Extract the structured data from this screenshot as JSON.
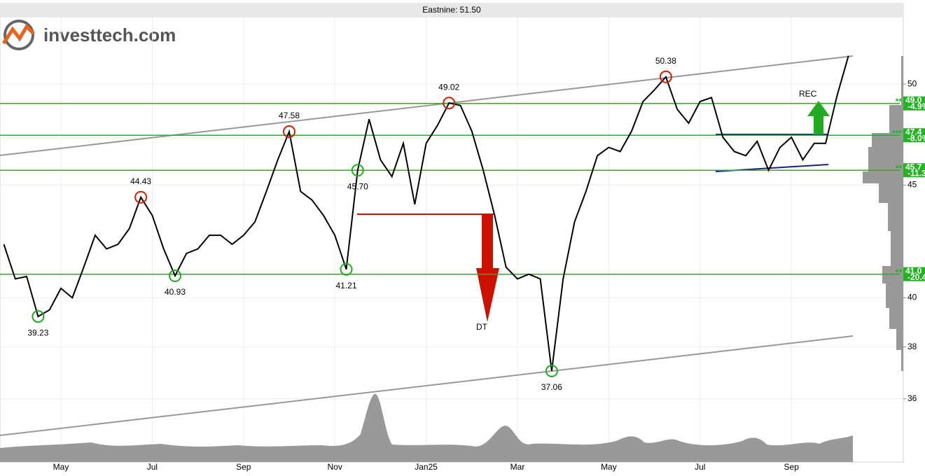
{
  "brand": "investtech.com",
  "chart_data": {
    "type": "line",
    "title": "Eastnine: 51.50",
    "categories": [
      null,
      null,
      null,
      null,
      null,
      "May",
      null,
      null,
      null,
      null,
      null,
      null,
      null,
      "Jul",
      null,
      null,
      null,
      null,
      null,
      null,
      null,
      "Sep",
      null,
      null,
      null,
      null,
      null,
      null,
      null,
      "Nov",
      null,
      null,
      null,
      null,
      null,
      null,
      null,
      "Jan25",
      null,
      null,
      null,
      null,
      null,
      null,
      null,
      "Mar",
      null,
      null,
      null,
      null,
      null,
      null,
      null,
      "May",
      null,
      null,
      null,
      null,
      null,
      null,
      null,
      "Jul",
      null,
      null,
      null,
      null,
      null,
      null,
      null,
      "Sep",
      null,
      null,
      null,
      null,
      null
    ],
    "values": [
      42.3,
      40.8,
      40.9,
      39.23,
      39.5,
      40.4,
      40.0,
      41.3,
      42.7,
      42.1,
      42.3,
      43.0,
      44.43,
      43.6,
      42.1,
      40.93,
      41.9,
      42.1,
      42.7,
      42.7,
      42.3,
      42.7,
      43.3,
      44.7,
      46.2,
      47.58,
      44.7,
      44.3,
      43.6,
      42.7,
      41.21,
      45.7,
      48.2,
      46.2,
      45.4,
      47.0,
      44.1,
      47.0,
      47.9,
      49.02,
      48.9,
      47.6,
      45.7,
      43.6,
      41.3,
      40.8,
      41.0,
      40.8,
      37.06,
      40.8,
      43.3,
      44.7,
      46.4,
      46.8,
      46.6,
      47.6,
      49.1,
      49.7,
      50.38,
      48.7,
      48.0,
      49.1,
      49.3,
      47.3,
      46.6,
      46.4,
      47.1,
      45.7,
      46.8,
      47.3,
      46.2,
      47.0,
      47.0,
      49.4,
      51.5
    ],
    "color": "#000000",
    "ylim": [
      33.7,
      53.6
    ],
    "log_y": true,
    "grid": true,
    "yticks": [
      36,
      38,
      40,
      45,
      50
    ],
    "pivot_highs": [
      44.43,
      47.58,
      49.02,
      50.38
    ],
    "pivot_lows": [
      39.23,
      40.93,
      41.21,
      37.06,
      {
        "value": 45.7,
        "label": "45.70"
      }
    ],
    "high_color": "#cc2200",
    "low_color": "#22aa22",
    "levels": [
      {
        "value": 49.0,
        "label": "49.0",
        "change": "-4.9%",
        "stars": "**"
      },
      {
        "value": 47.4,
        "label": "47.4",
        "change": "-8.0%",
        "stars": "***"
      },
      {
        "value": 45.7,
        "label": "45.7",
        "change": "-11.3",
        "stars": "**"
      },
      {
        "value": 41.0,
        "label": "41.0",
        "change": "-20.4",
        "stars": "**"
      }
    ],
    "level_color": "#22b322",
    "annotations": [
      "DT",
      "REC"
    ]
  }
}
